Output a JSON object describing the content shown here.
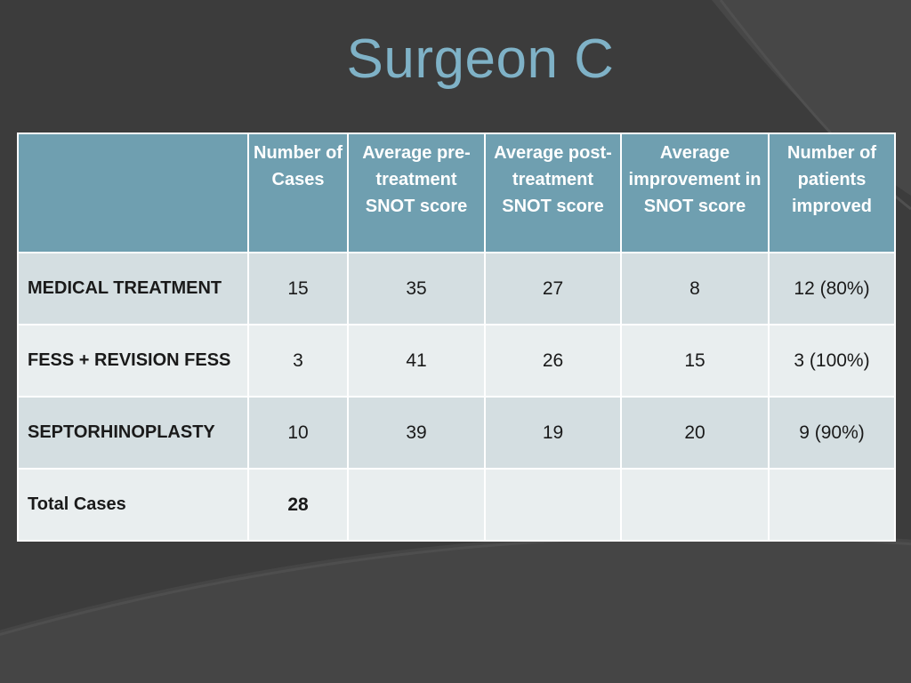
{
  "slide": {
    "title": "Surgeon C"
  },
  "table": {
    "headers": [
      "",
      "Number of Cases",
      "Average pre-treatment SNOT score",
      "Average post-treatment SNOT score",
      "Average improvement in SNOT score",
      "Number of patients improved"
    ],
    "rows": [
      {
        "label": "MEDICAL TREATMENT",
        "cases": "15",
        "pre": "35",
        "post": "27",
        "improvement": "8",
        "improved": "12  (80%)"
      },
      {
        "label": "FESS + REVISION FESS",
        "cases": "3",
        "pre": "41",
        "post": "26",
        "improvement": "15",
        "improved": "3 (100%)"
      },
      {
        "label": "SEPTORHINOPLASTY",
        "cases": "10",
        "pre": "39",
        "post": "19",
        "improvement": "20",
        "improved": "9  (90%)"
      },
      {
        "label": "Total Cases",
        "cases": "28",
        "pre": "",
        "post": "",
        "improvement": "",
        "improved": ""
      }
    ]
  },
  "colors": {
    "background": "#3e3e3e",
    "title": "#7fb2c7",
    "header": "#6f9fb0",
    "row_odd": "#d4dee1",
    "row_even": "#e9eeef"
  }
}
